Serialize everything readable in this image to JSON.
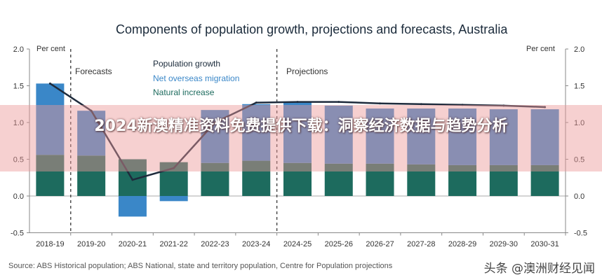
{
  "chart_data": {
    "type": "bar",
    "title": "Components of population growth, projections and forecasts, Australia",
    "unit_left": "Per cent",
    "unit_right": "Per cent",
    "ylim": [
      -0.5,
      2.0
    ],
    "yticks": [
      "2.0",
      "1.5",
      "1.0",
      "0.5",
      "0.0",
      "-0.5"
    ],
    "categories": [
      "2018-19",
      "2019-20",
      "2020-21",
      "2021-22",
      "2022-23",
      "2023-24",
      "2024-25",
      "2025-26",
      "2026-27",
      "2027-28",
      "2028-29",
      "2029-30",
      "2030-31"
    ],
    "legend_title": "Population growth",
    "series": [
      {
        "name": "Net overseas migration",
        "color": "#3a87c8",
        "values": [
          0.97,
          0.61,
          -0.28,
          -0.07,
          0.72,
          0.77,
          0.83,
          0.79,
          0.75,
          0.76,
          0.77,
          0.76,
          0.76
        ]
      },
      {
        "name": "Natural increase",
        "color": "#1d6b5e",
        "values": [
          0.56,
          0.55,
          0.5,
          0.46,
          0.45,
          0.48,
          0.45,
          0.44,
          0.44,
          0.43,
          0.42,
          0.42,
          0.42
        ]
      }
    ],
    "line_values": [
      1.53,
      1.16,
      0.22,
      0.38,
      1.0,
      1.27,
      1.28,
      1.28,
      1.26,
      1.25,
      1.24,
      1.23,
      1.21
    ],
    "sections": [
      {
        "label": "Forecasts",
        "after_category_index": 0
      },
      {
        "label": "Projections",
        "after_category_index": 5
      }
    ],
    "source": "Source: ABS Historical population; ABS National, state and territory population, Centre for Population projections"
  },
  "banner": {
    "title": "2024新澳精准资料免费提供下载：洞察经济数据与趋势分析"
  },
  "watermark": "头条 @澳洲财经见闻"
}
